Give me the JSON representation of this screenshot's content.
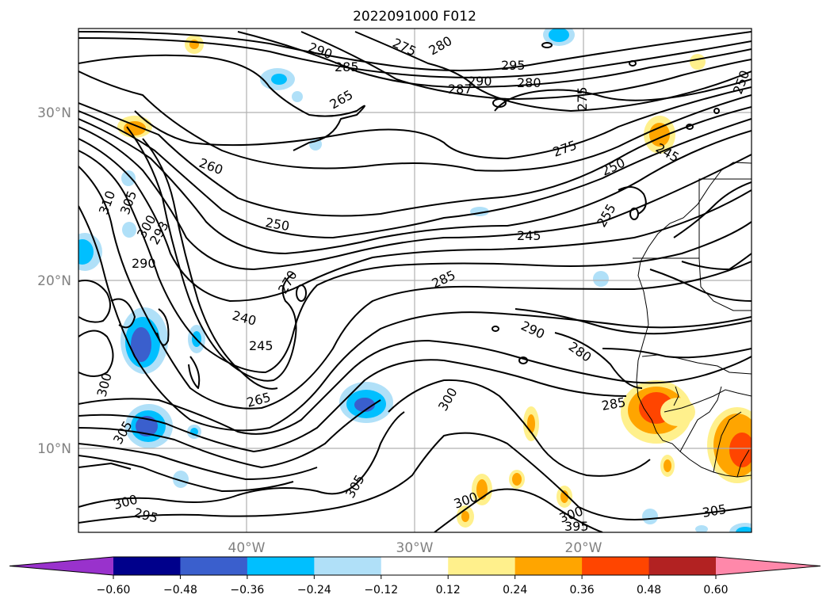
{
  "title": "2022091000 F012",
  "lat_labels": [
    "30°N",
    "20°N",
    "10°N"
  ],
  "lon_labels": [
    "40°W",
    "30°W",
    "20°W"
  ],
  "colorbar": {
    "ticks": [
      "−0.60",
      "−0.48",
      "−0.36",
      "−0.24",
      "−0.12",
      "0.12",
      "0.24",
      "0.36",
      "0.48",
      "0.60"
    ],
    "colors": [
      "#9932cc",
      "#00008b",
      "#3a5fcd",
      "#00bfff",
      "#b0e0f8",
      "#ffffff",
      "#fff08c",
      "#ffa500",
      "#ff4500",
      "#b22222",
      "#ff88aa"
    ]
  },
  "contour_labels": [
    "290",
    "275",
    "280",
    "285",
    "295",
    "290",
    "280",
    "287",
    "265",
    "275",
    "250",
    "260",
    "275",
    "250",
    "245",
    "310",
    "305",
    "300",
    "293",
    "250",
    "255",
    "245",
    "290",
    "285",
    "270",
    "240",
    "290",
    "245",
    "280",
    "300",
    "265",
    "300",
    "285",
    "305",
    "300",
    "305",
    "300",
    "295",
    "300",
    "395",
    "305"
  ],
  "shading_colors": {
    "light_blue": "#b0e0f8",
    "cyan": "#00bfff",
    "blue": "#3a5fcd",
    "dark_blue": "#00008b",
    "purple": "#9932cc",
    "yellow": "#fff08c",
    "orange": "#ffa500",
    "red": "#ff4500"
  }
}
